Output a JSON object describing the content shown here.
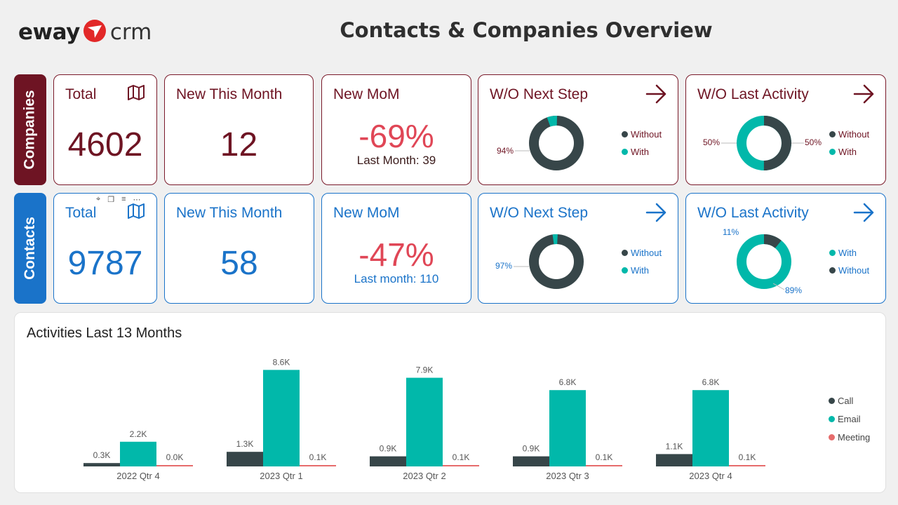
{
  "header": {
    "logo_left": "eway",
    "logo_right": "crm",
    "title": "Contacts & Companies Overview"
  },
  "colors": {
    "companies": "#6e1423",
    "contacts": "#1a73c9",
    "dark": "#374649",
    "teal": "#01b8aa",
    "coral": "#e66c6c",
    "mom": "#e04656"
  },
  "companies": {
    "section_label": "Companies",
    "total": {
      "title": "Total",
      "value": "4602",
      "icon": "map-icon"
    },
    "new_this_month": {
      "title": "New This Month",
      "value": "12"
    },
    "new_mom": {
      "title": "New MoM",
      "value": "-69%",
      "last": "Last Month: 39"
    },
    "wo_next_step": {
      "title": "W/O Next Step",
      "icon": "arrow-right-icon",
      "legend": [
        "Without",
        "With"
      ],
      "label_left": "94%",
      "segments": [
        {
          "name": "Without",
          "value": 94
        },
        {
          "name": "With",
          "value": 6
        }
      ]
    },
    "wo_last_activity": {
      "title": "W/O Last Activity",
      "icon": "arrow-right-icon",
      "legend": [
        "Without",
        "With"
      ],
      "label_left": "50%",
      "label_right": "50%",
      "segments": [
        {
          "name": "Without",
          "value": 50
        },
        {
          "name": "With",
          "value": 50
        }
      ]
    }
  },
  "contacts": {
    "section_label": "Contacts",
    "total": {
      "title": "Total",
      "value": "9787",
      "icon": "map-icon"
    },
    "new_this_month": {
      "title": "New This Month",
      "value": "58"
    },
    "new_mom": {
      "title": "New MoM",
      "value": "-47%",
      "last": "Last month: 110"
    },
    "wo_next_step": {
      "title": "W/O Next Step",
      "icon": "arrow-right-icon",
      "legend": [
        "Without",
        "With"
      ],
      "label_left": "97%",
      "segments": [
        {
          "name": "Without",
          "value": 97
        },
        {
          "name": "With",
          "value": 3
        }
      ]
    },
    "wo_last_activity": {
      "title": "W/O Last Activity",
      "icon": "arrow-right-icon",
      "legend": [
        "With",
        "Without"
      ],
      "label_top": "11%",
      "label_bottom": "89%",
      "segments": [
        {
          "name": "With",
          "value": 89
        },
        {
          "name": "Without",
          "value": 11
        }
      ]
    }
  },
  "activities": {
    "title": "Activities Last 13 Months",
    "legend": [
      "Call",
      "Email",
      "Meeting"
    ]
  },
  "chart_data": {
    "type": "bar",
    "title": "Activities Last 13 Months",
    "categories": [
      "2022 Qtr 4",
      "2023 Qtr 1",
      "2023 Qtr 2",
      "2023 Qtr 3",
      "2023 Qtr 4"
    ],
    "series": [
      {
        "name": "Call",
        "values": [
          0.3,
          1.3,
          0.9,
          0.9,
          1.1
        ],
        "labels": [
          "0.3K",
          "1.3K",
          "0.9K",
          "0.9K",
          "1.1K"
        ]
      },
      {
        "name": "Email",
        "values": [
          2.2,
          8.6,
          7.9,
          6.8,
          6.8
        ],
        "labels": [
          "2.2K",
          "8.6K",
          "7.9K",
          "6.8K",
          "6.8K"
        ]
      },
      {
        "name": "Meeting",
        "values": [
          0.0,
          0.1,
          0.1,
          0.1,
          0.1
        ],
        "labels": [
          "0.0K",
          "0.1K",
          "0.1K",
          "0.1K",
          "0.1K"
        ]
      }
    ],
    "legend_position": "right",
    "grid": false
  }
}
